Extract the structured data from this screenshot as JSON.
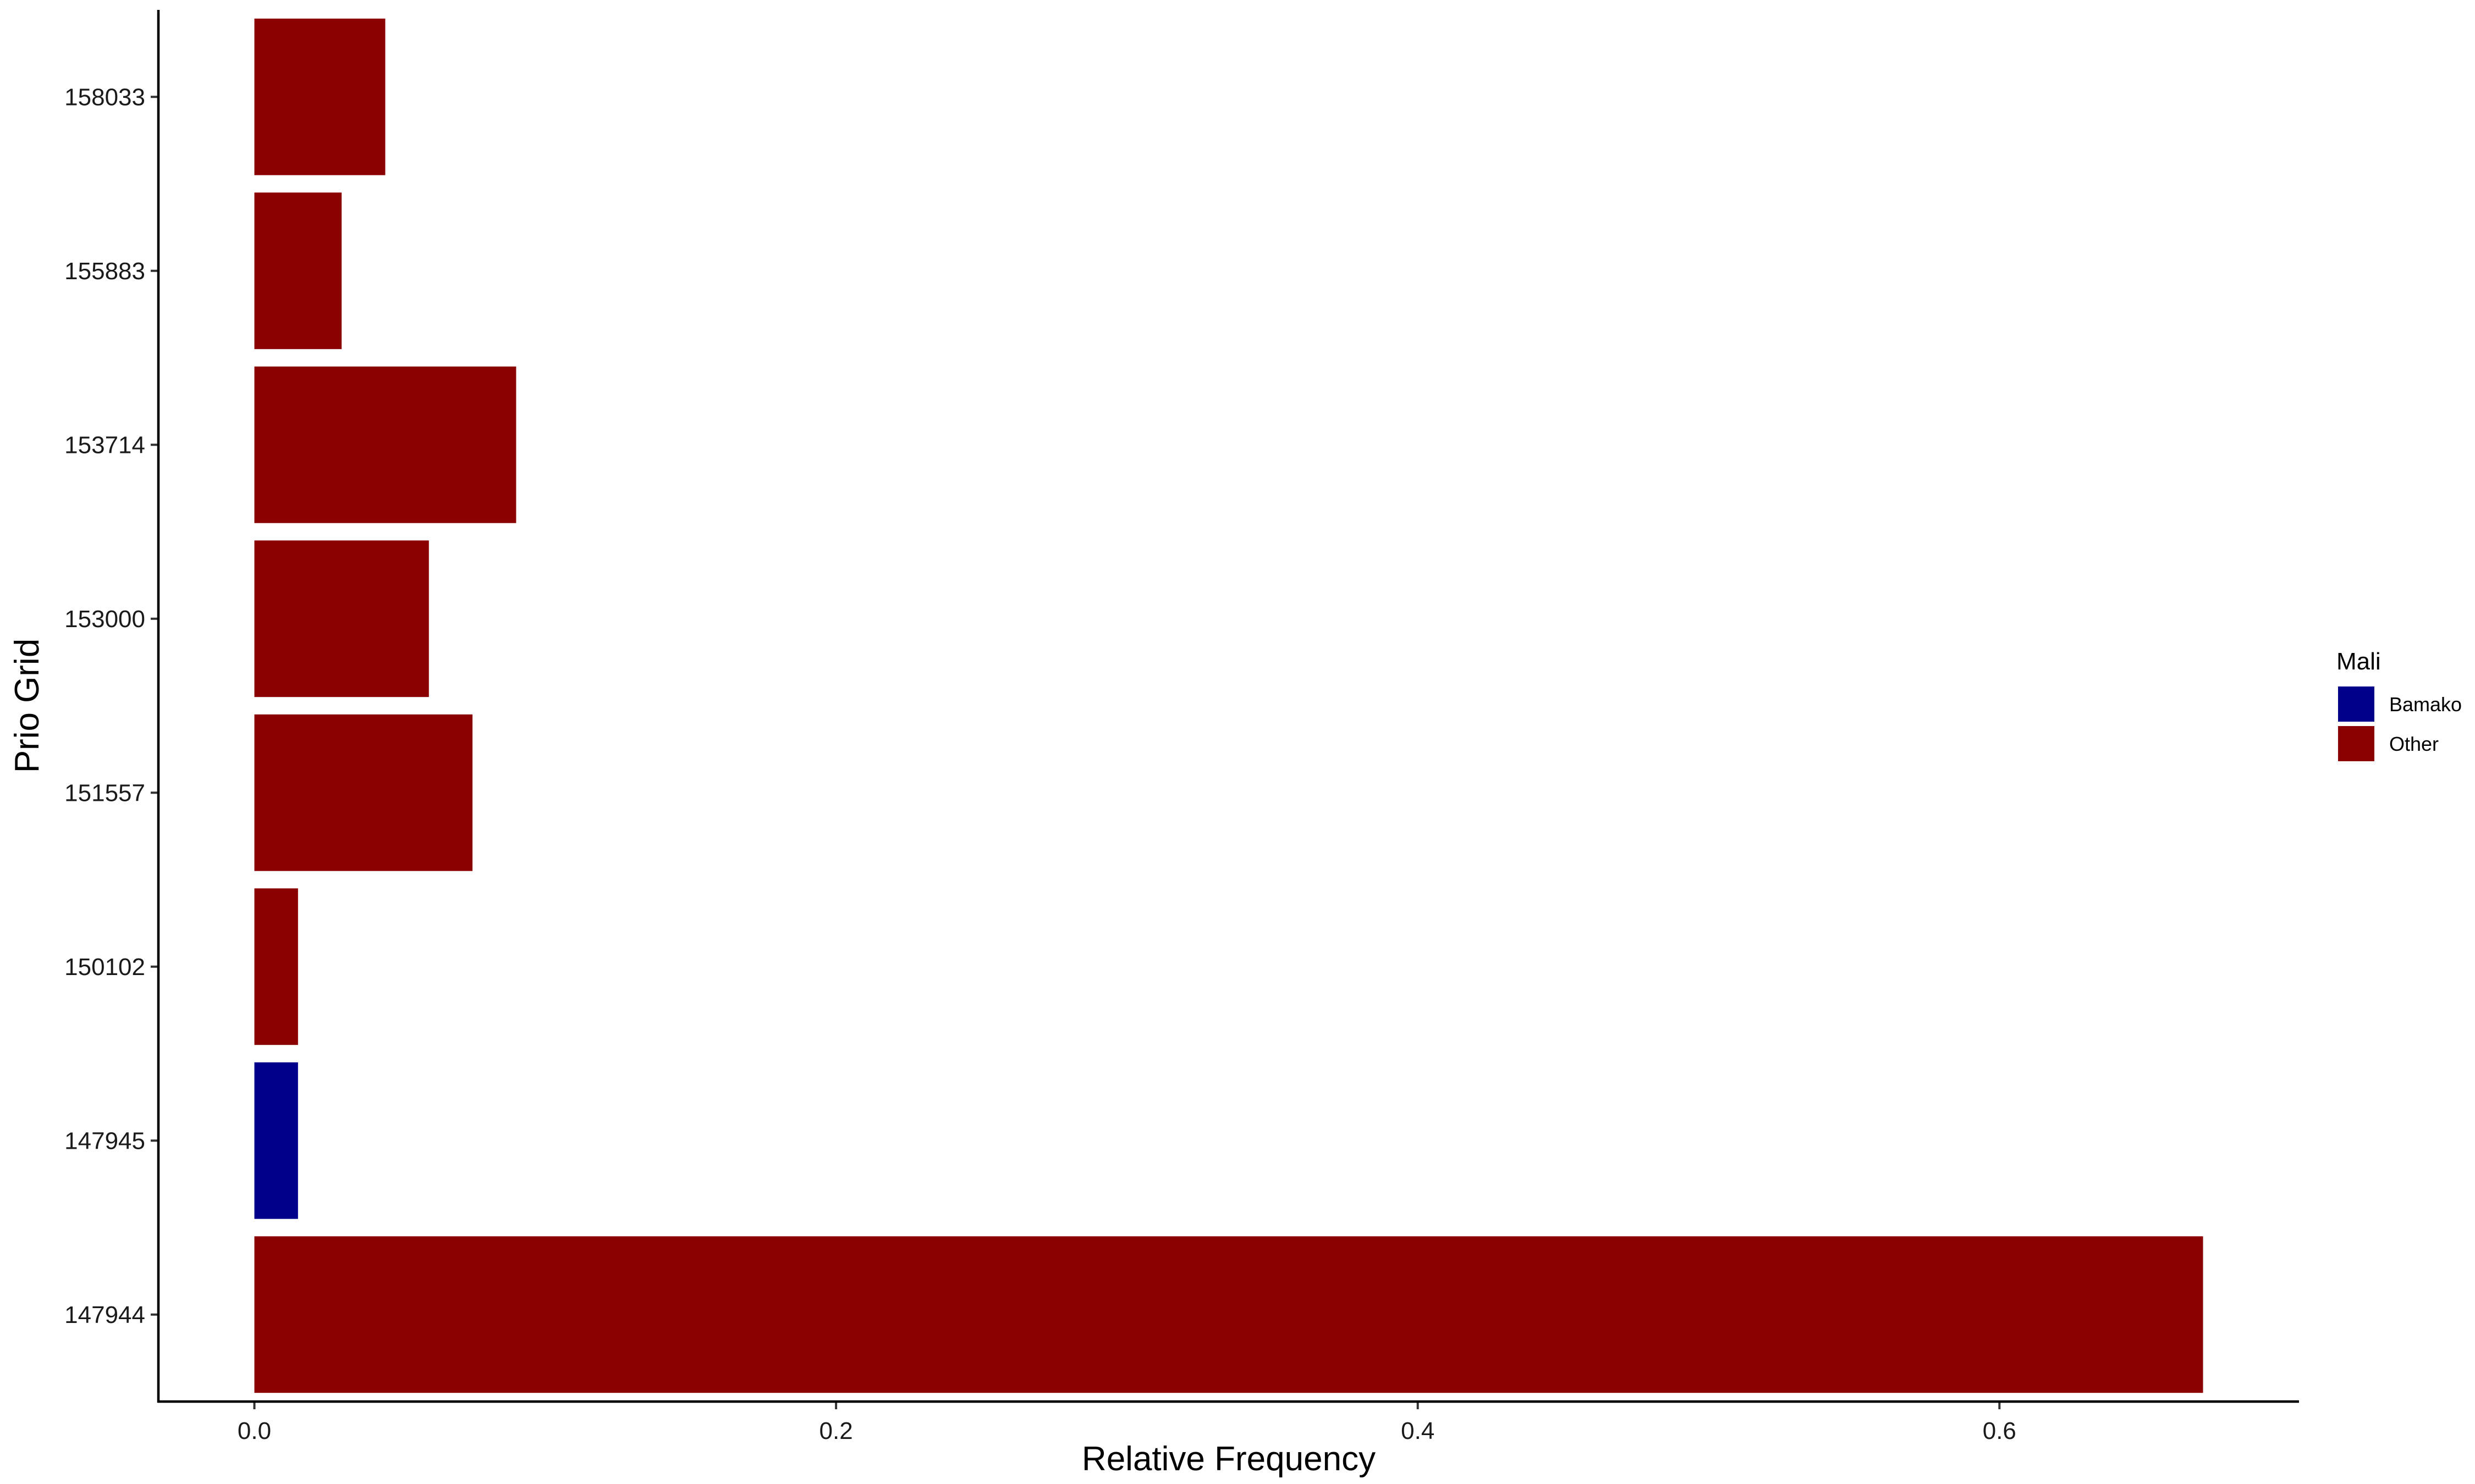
{
  "chart_data": {
    "type": "bar",
    "orientation": "horizontal",
    "title": "",
    "xlabel": "Relative Frequency",
    "ylabel": "Prio Grid",
    "xlim": [
      -0.033,
      0.703
    ],
    "xticks": [
      0.0,
      0.2,
      0.4,
      0.6
    ],
    "xtick_labels": [
      "0.0",
      "0.2",
      "0.4",
      "0.6"
    ],
    "grid": false,
    "categories": [
      "147944",
      "147945",
      "150102",
      "151557",
      "153000",
      "153714",
      "155883",
      "158033"
    ],
    "values": [
      0.67,
      0.015,
      0.015,
      0.075,
      0.06,
      0.09,
      0.03,
      0.045
    ],
    "groups": [
      "Other",
      "Bamako",
      "Other",
      "Other",
      "Other",
      "Other",
      "Other",
      "Other"
    ],
    "legend": {
      "title": "Mali",
      "placement": "right",
      "entries": [
        {
          "label": "Bamako",
          "color": "#00008B"
        },
        {
          "label": "Other",
          "color": "#8B0000"
        }
      ]
    }
  }
}
